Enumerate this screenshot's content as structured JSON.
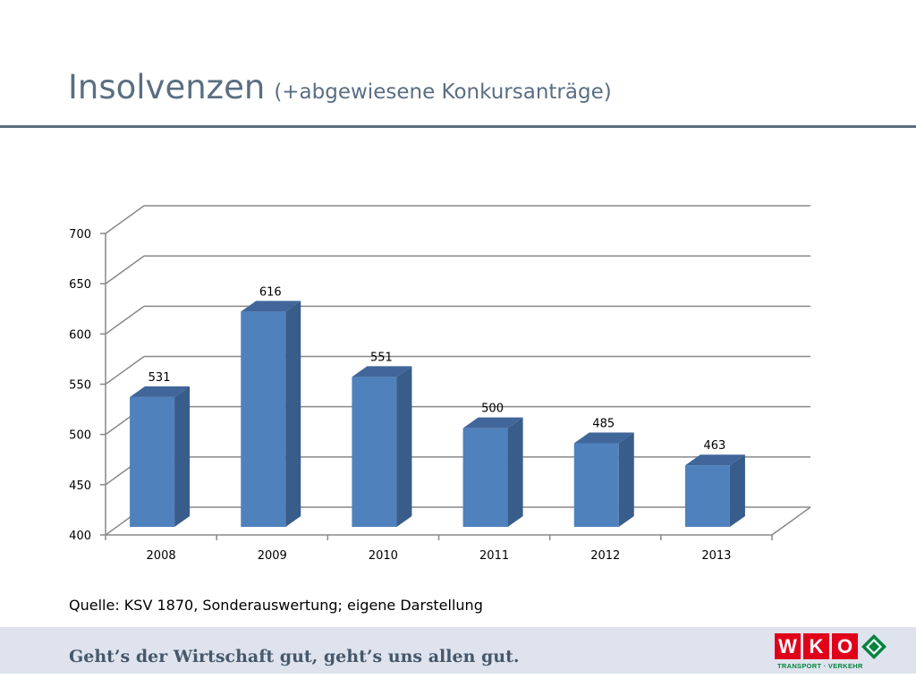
{
  "header": {
    "title": "Insolvenzen",
    "subtitle": "(+abgewiesene Konkursanträge)"
  },
  "chart_data": {
    "type": "bar",
    "title": "",
    "xlabel": "",
    "ylabel": "",
    "categories": [
      "2008",
      "2009",
      "2010",
      "2011",
      "2012",
      "2013"
    ],
    "values": [
      531,
      616,
      551,
      500,
      485,
      463
    ],
    "data_labels": [
      "531",
      "616",
      "551",
      "500",
      "485",
      "463"
    ],
    "ylim": [
      400,
      700
    ],
    "yticks": [
      400,
      450,
      500,
      550,
      600,
      650,
      700
    ],
    "grid": true,
    "legend": "none",
    "colors": {
      "bar_front": "#4f81bd",
      "bar_side": "#385d8a",
      "bar_top": "#41669a",
      "grid": "#888888"
    }
  },
  "source": {
    "text": "Quelle: KSV 1870, Sonderauswertung; eigene Darstellung"
  },
  "footer": {
    "slogan": "Geht’s der Wirtschaft gut, geht’s uns allen gut.",
    "logo": {
      "letters": [
        "W",
        "K",
        "O"
      ],
      "tagline": "TRANSPORT · VERKEHR",
      "color_red": "#e1001a",
      "color_green": "#00843d"
    }
  }
}
